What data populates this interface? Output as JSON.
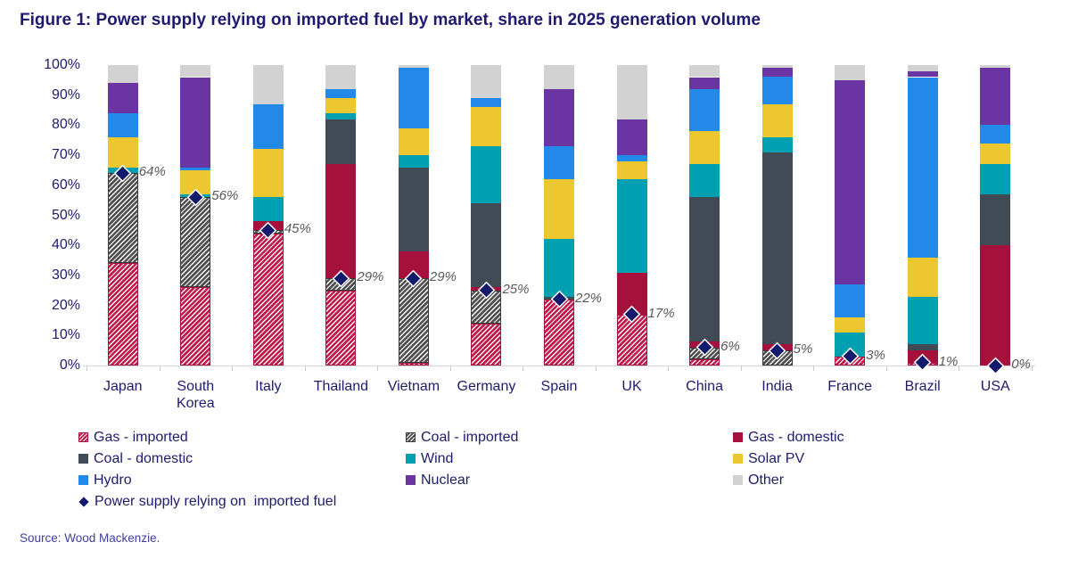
{
  "title": "Figure 1: Power supply relying on imported fuel by market, share in 2025 generation volume",
  "source": "Source: Wood Mackenzie.",
  "colors": {
    "title_text": "#1F1A70",
    "axis_text": "#1E1B6E",
    "marker": "#131A6B",
    "marker_label_text": "#595959",
    "axis_line": "#D5D5D5",
    "source_text": "#3F3F9F"
  },
  "chart_data": {
    "type": "bar",
    "stacked": true,
    "value_unit": "%",
    "grid": false,
    "legend_position": "bottom",
    "categories": [
      "Japan",
      "South Korea",
      "Italy",
      "Thailand",
      "Vietnam",
      "Germany",
      "Spain",
      "UK",
      "China",
      "India",
      "France",
      "Brazil",
      "USA"
    ],
    "series": [
      {
        "name": "Gas - imported",
        "color": "#C2194B",
        "pattern": "hatch",
        "border": "#A8123F",
        "values": [
          34,
          26,
          44,
          25,
          1,
          14,
          22,
          17,
          2,
          0,
          3,
          1,
          0
        ]
      },
      {
        "name": "Coal - imported",
        "color": "#4F4F4F",
        "pattern": "hatch",
        "border": "#3A3A3A",
        "values": [
          30,
          30,
          1,
          4,
          28,
          11,
          0,
          0,
          4,
          5,
          0,
          0,
          0
        ]
      },
      {
        "name": "Gas - domestic",
        "color": "#A6103D",
        "pattern": "solid",
        "values": [
          0,
          0,
          3,
          38,
          9,
          1,
          0,
          14,
          2,
          2,
          0,
          4,
          40
        ]
      },
      {
        "name": "Coal - domestic",
        "color": "#414B56",
        "pattern": "solid",
        "values": [
          0,
          0,
          0,
          15,
          28,
          28,
          1,
          0,
          48,
          64,
          0,
          2,
          17
        ]
      },
      {
        "name": "Wind",
        "color": "#00A0B0",
        "pattern": "solid",
        "values": [
          2,
          1,
          8,
          2,
          4,
          19,
          19,
          31,
          11,
          5,
          8,
          16,
          10
        ]
      },
      {
        "name": "Solar PV",
        "color": "#EDC72F",
        "pattern": "solid",
        "values": [
          10,
          8,
          16,
          5,
          9,
          13,
          20,
          6,
          11,
          11,
          5,
          13,
          7
        ]
      },
      {
        "name": "Hydro",
        "color": "#2289E8",
        "pattern": "solid",
        "values": [
          8,
          1,
          15,
          3,
          20,
          3,
          11,
          2,
          14,
          9,
          11,
          60,
          6
        ]
      },
      {
        "name": "Nuclear",
        "color": "#6A34A2",
        "pattern": "solid",
        "values": [
          10,
          30,
          0,
          0,
          0,
          0,
          19,
          12,
          4,
          3,
          68,
          2,
          19
        ]
      },
      {
        "name": "Other",
        "color": "#D2D2D2",
        "pattern": "solid",
        "values": [
          6,
          4,
          13,
          8,
          1,
          11,
          8,
          18,
          4,
          1,
          5,
          2,
          1
        ]
      }
    ],
    "marker_series": {
      "name": "Power supply relying on  imported fuel",
      "color": "#131A6B",
      "values": [
        64,
        56,
        45,
        29,
        29,
        25,
        22,
        17,
        6,
        5,
        3,
        1,
        0
      ],
      "labels": [
        "64%",
        "56%",
        "45%",
        "29%",
        "29%",
        "25%",
        "22%",
        "17%",
        "6%",
        "5%",
        "3%",
        "1%",
        "0%"
      ]
    },
    "y_axis": {
      "min": 0,
      "max": 100,
      "tick_step": 10,
      "tick_labels": [
        "100%",
        "90%",
        "80%",
        "70%",
        "60%",
        "50%",
        "40%",
        "30%",
        "20%",
        "10%",
        "0%"
      ]
    }
  }
}
